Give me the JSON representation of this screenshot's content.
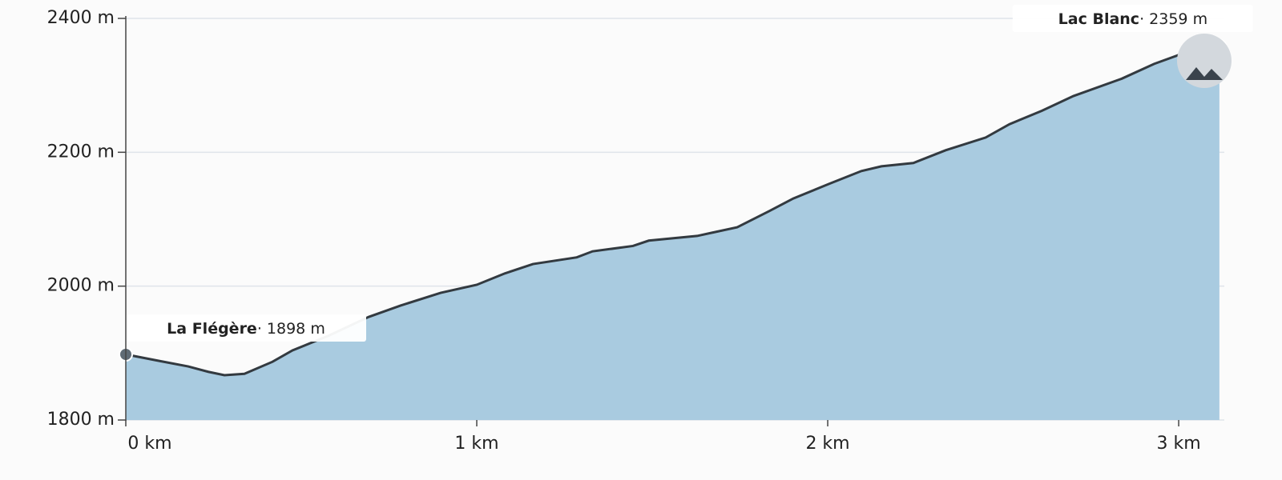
{
  "chart_data": {
    "type": "area",
    "x": [
      0,
      0.098,
      0.178,
      0.235,
      0.281,
      0.338,
      0.418,
      0.475,
      0.578,
      0.692,
      0.783,
      0.897,
      1.0,
      1.08,
      1.16,
      1.285,
      1.33,
      1.445,
      1.49,
      1.628,
      1.742,
      1.833,
      1.902,
      2.005,
      2.096,
      2.153,
      2.244,
      2.336,
      2.45,
      2.518,
      2.61,
      2.7,
      2.838,
      2.93,
      3.04,
      3.116
    ],
    "values": [
      1898,
      1888,
      1880,
      1872,
      1867,
      1869,
      1887,
      1904,
      1926,
      1954,
      1971,
      1990,
      2002,
      2019,
      2033,
      2043,
      2052,
      2060,
      2068,
      2075,
      2088,
      2112,
      2131,
      2153,
      2172,
      2179,
      2184,
      2203,
      2222,
      2242,
      2262,
      2284,
      2310,
      2332,
      2353,
      2359
    ],
    "color": "#a9cbe0",
    "line_color": "#333a40",
    "xlim": [
      0,
      3.13
    ],
    "ylim": [
      1800,
      2400
    ],
    "xticks": [
      {
        "value": 0,
        "label": "0 km"
      },
      {
        "value": 1,
        "label": "1 km"
      },
      {
        "value": 2,
        "label": "2 km"
      },
      {
        "value": 3,
        "label": "3 km"
      }
    ],
    "yticks": [
      {
        "value": 1800,
        "label": "1800 m"
      },
      {
        "value": 2000,
        "label": "2000 m"
      },
      {
        "value": 2200,
        "label": "2200 m"
      },
      {
        "value": 2400,
        "label": "2400 m"
      }
    ],
    "grid": true,
    "annotations": [
      {
        "name": "La Flégère",
        "label": "1898 m"
      },
      {
        "name": "Lac Blanc",
        "label": "2359 m"
      }
    ]
  }
}
